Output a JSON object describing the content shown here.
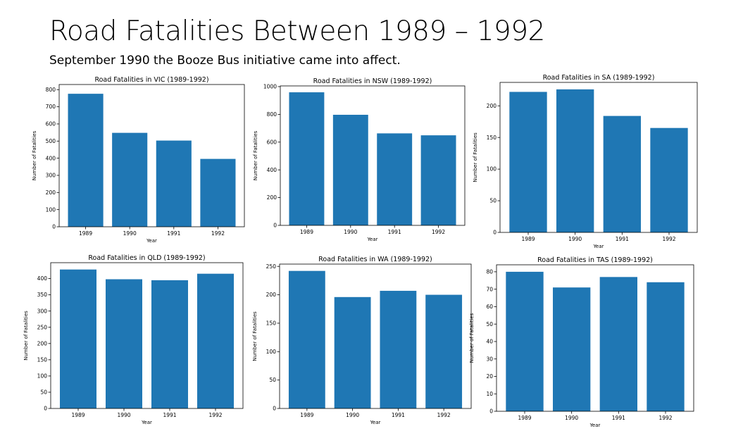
{
  "page": {
    "title": "Road Fatalities Between 1989 – 1992",
    "subtitle": "September 1990 the Booze Bus initiative came into affect."
  },
  "colors": {
    "bar": "#1f77b4",
    "axis": "#000000"
  },
  "chart_data": [
    {
      "type": "bar",
      "title": "Road Fatalities in VIC (1989-1992)",
      "xlabel": "Year",
      "ylabel": "Number of Fatalities",
      "categories": [
        "1989",
        "1990",
        "1991",
        "1992"
      ],
      "values": [
        776,
        548,
        503,
        396
      ],
      "ylim": [
        0,
        830
      ],
      "yticks": [
        0,
        100,
        200,
        300,
        400,
        500,
        600,
        700,
        800
      ],
      "grid": false
    },
    {
      "type": "bar",
      "title": "Road Fatalities in NSW (1989-1992)",
      "xlabel": "Year",
      "ylabel": "Number of Fatalities",
      "categories": [
        "1989",
        "1990",
        "1991",
        "1992"
      ],
      "values": [
        959,
        797,
        663,
        649
      ],
      "ylim": [
        0,
        1005
      ],
      "yticks": [
        0,
        200,
        400,
        600,
        800,
        1000
      ],
      "grid": false
    },
    {
      "type": "bar",
      "title": "Road Fatalities in SA (1989-1992)",
      "xlabel": "Year",
      "ylabel": "Number of Fatalities",
      "categories": [
        "1989",
        "1990",
        "1991",
        "1992"
      ],
      "values": [
        222,
        226,
        184,
        165
      ],
      "ylim": [
        0,
        237
      ],
      "yticks": [
        0,
        50,
        100,
        150,
        200
      ],
      "grid": false
    },
    {
      "type": "bar",
      "title": "Road Fatalities in QLD (1989-1992)",
      "xlabel": "Year",
      "ylabel": "Number of Fatalities",
      "categories": [
        "1989",
        "1990",
        "1991",
        "1992"
      ],
      "values": [
        428,
        398,
        395,
        415
      ],
      "ylim": [
        0,
        449
      ],
      "yticks": [
        0,
        50,
        100,
        150,
        200,
        250,
        300,
        350,
        400
      ],
      "grid": false
    },
    {
      "type": "bar",
      "title": "Road Fatalities in WA (1989-1992)",
      "xlabel": "Year",
      "ylabel": "Number of Fatalities",
      "categories": [
        "1989",
        "1990",
        "1991",
        "1992"
      ],
      "values": [
        242,
        196,
        207,
        200
      ],
      "ylim": [
        0,
        254
      ],
      "yticks": [
        0,
        50,
        100,
        150,
        200,
        250
      ],
      "grid": false
    },
    {
      "type": "bar",
      "title": "Road Fatalities in TAS (1989-1992)",
      "xlabel": "Year",
      "ylabel": "Number of Fatalities",
      "categories": [
        "1989",
        "1990",
        "1991",
        "1992"
      ],
      "values": [
        80,
        71,
        77,
        74
      ],
      "ylim": [
        0,
        84
      ],
      "yticks": [
        0,
        10,
        20,
        30,
        40,
        50,
        60,
        70,
        80
      ],
      "grid": false
    }
  ]
}
